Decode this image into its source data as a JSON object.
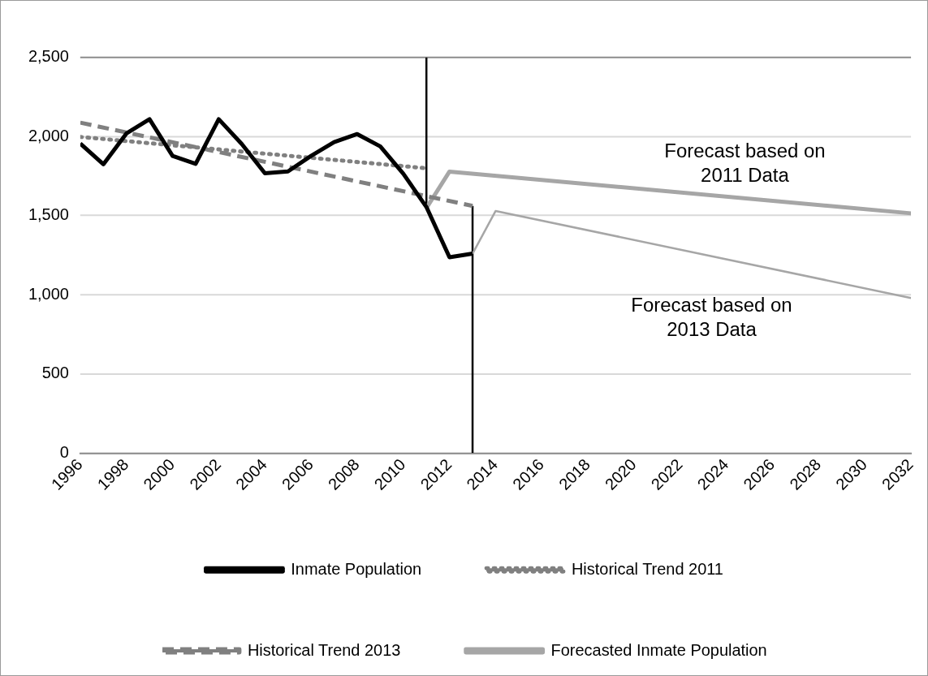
{
  "chart_data": {
    "type": "line",
    "xlim": [
      1996,
      2032
    ],
    "xticks": [
      1996,
      1998,
      2000,
      2002,
      2004,
      2006,
      2008,
      2010,
      2012,
      2014,
      2016,
      2018,
      2020,
      2022,
      2024,
      2026,
      2028,
      2030,
      2032
    ],
    "ylim": [
      0,
      2500
    ],
    "yticks": [
      0,
      500,
      {
        "value": 1000,
        "label": "1,000"
      },
      {
        "value": 1500,
        "label": "1,500"
      },
      {
        "value": 2000,
        "label": "2,000"
      },
      {
        "value": 2500,
        "label": "2,500"
      }
    ],
    "grid": "y",
    "legend": "bottom",
    "marker": "none",
    "series": [
      {
        "name": "Inmate Population",
        "color": "#000000",
        "line_style": "solid",
        "x": [
          1996,
          1997,
          1998,
          1999,
          2000,
          2001,
          2002,
          2003,
          2004,
          2005,
          2006,
          2007,
          2008,
          2009,
          2010,
          2011,
          2012,
          2013
        ],
        "values": [
          1956,
          1825,
          2020,
          2110,
          1878,
          1828,
          2110,
          1953,
          1768,
          1780,
          1878,
          1965,
          2016,
          1938,
          1765,
          1555,
          1237,
          1260
        ]
      },
      {
        "name": "Historical Trend 2011",
        "color": "#808080",
        "line_style": "dotted",
        "x": [
          1996,
          2011
        ],
        "values": [
          1998,
          1800
        ]
      },
      {
        "name": "Historical Trend 2013",
        "color": "#808080",
        "line_style": "dashed",
        "x": [
          1996,
          2013
        ],
        "values": [
          2088,
          1562
        ]
      },
      {
        "name": "Forecasted Inmate Population",
        "color": "#a6a6a6",
        "line_style": "solid",
        "x": [
          2011,
          2012,
          2032
        ],
        "values": [
          1548,
          1779,
          1515
        ]
      },
      {
        "color": "#a6a6a6",
        "line_style": "solid",
        "x": [
          2013,
          2014,
          2032
        ],
        "values": [
          1260,
          1530,
          980
        ]
      },
      {
        "color": "#000000",
        "line_style": "solid",
        "x": [
          2011,
          2011
        ],
        "values": [
          1548,
          2500
        ]
      },
      {
        "color": "#000000",
        "line_style": "solid",
        "x": [
          2013,
          2013
        ],
        "values": [
          0,
          1562
        ]
      }
    ],
    "annotations": [
      "Forecast based on\n2011 Data",
      "Forecast based on\n2013 Data"
    ]
  }
}
